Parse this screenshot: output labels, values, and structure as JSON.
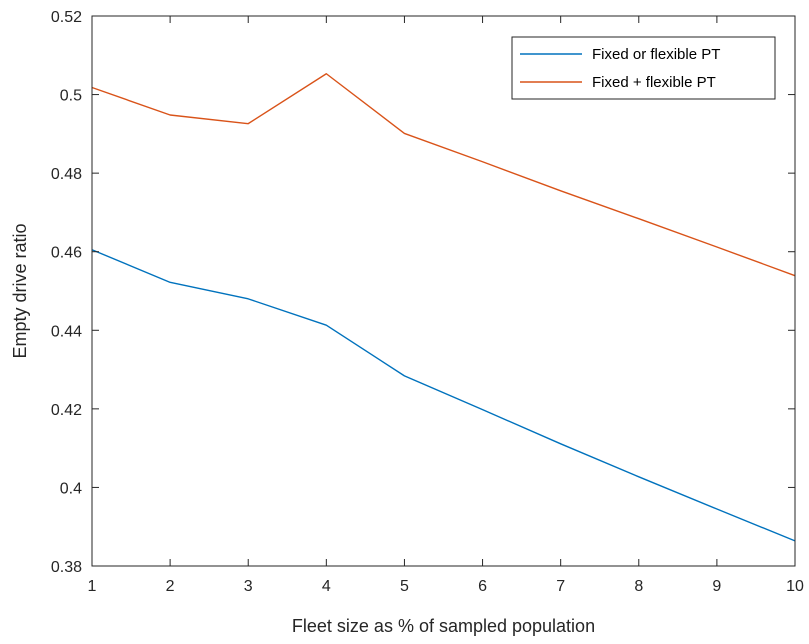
{
  "chart_data": {
    "type": "line",
    "title": "",
    "xlabel": "Fleet size as % of sampled population",
    "ylabel": "Empty drive ratio",
    "xlim": [
      1,
      10
    ],
    "ylim": [
      0.38,
      0.52
    ],
    "xticks": [
      1,
      2,
      3,
      4,
      5,
      6,
      7,
      8,
      9,
      10
    ],
    "xtick_labels": [
      "1",
      "2",
      "3",
      "4",
      "5",
      "6",
      "7",
      "8",
      "9",
      "10"
    ],
    "yticks": [
      0.38,
      0.4,
      0.42,
      0.44,
      0.46,
      0.48,
      0.5,
      0.52
    ],
    "ytick_labels": [
      "0.38",
      "0.4",
      "0.42",
      "0.44",
      "0.46",
      "0.48",
      "0.5",
      "0.52"
    ],
    "grid": false,
    "legend_position": "top-right",
    "x": [
      1,
      2,
      3,
      4,
      5,
      6,
      7,
      8,
      9,
      10
    ],
    "series": [
      {
        "name": "Fixed or flexible PT",
        "color": "#0072BD",
        "values": [
          0.4605,
          0.4522,
          0.448,
          0.4413,
          0.4284,
          0.4198,
          0.4111,
          0.4027,
          0.3945,
          0.3864
        ]
      },
      {
        "name": "Fixed + flexible PT",
        "color": "#D95319",
        "values": [
          0.5018,
          0.4948,
          0.4926,
          0.5053,
          0.4901,
          0.4829,
          0.4755,
          0.4684,
          0.4612,
          0.4539
        ]
      }
    ]
  }
}
